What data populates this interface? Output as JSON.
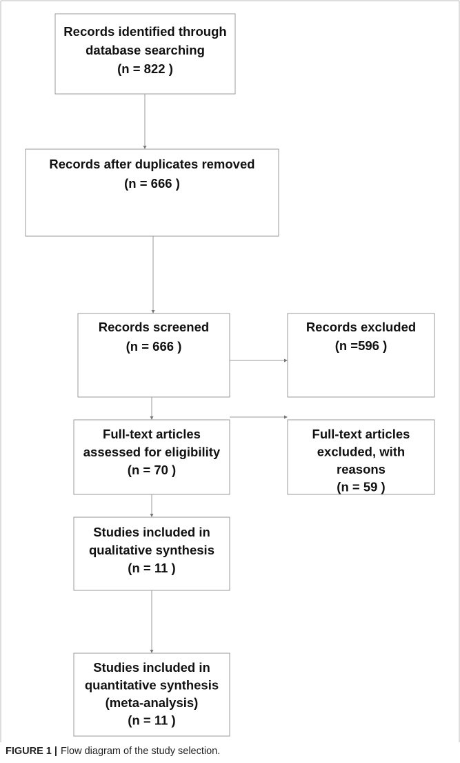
{
  "nodes": [
    {
      "lines": [
        "Records identified through",
        "database searching",
        "(n =  822 )"
      ]
    },
    {
      "lines": [
        "Records after duplicates removed",
        "(n = 666  )"
      ]
    },
    {
      "lines": [
        "Records screened",
        "(n =  666 )"
      ]
    },
    {
      "lines": [
        "Records excluded",
        "(n =596 )"
      ]
    },
    {
      "lines": [
        "Full-text articles",
        "assessed for eligibility",
        "(n = 70  )"
      ]
    },
    {
      "lines": [
        "Full-text articles",
        "excluded, with",
        "reasons",
        "(n = 59  )"
      ]
    },
    {
      "lines": [
        "Studies included in",
        "qualitative synthesis",
        "(n = 11  )"
      ]
    },
    {
      "lines": [
        "Studies included in",
        "quantitative synthesis",
        "(meta-analysis)",
        "(n = 11 )"
      ]
    }
  ],
  "caption": {
    "label": "FIGURE 1 |",
    "text": "Flow diagram of the study selection."
  }
}
